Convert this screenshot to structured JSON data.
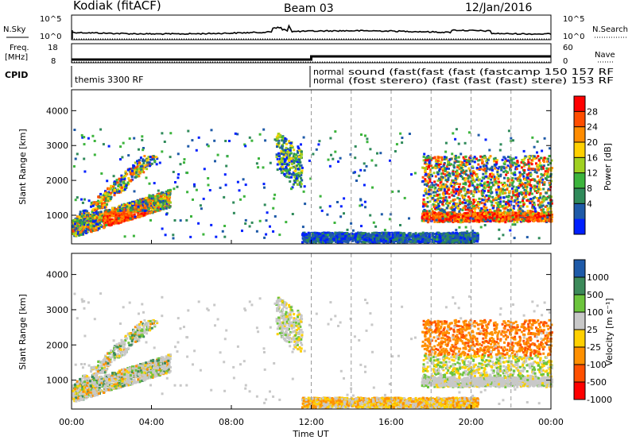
{
  "header": {
    "station": "Kodiak (fitACF)",
    "beam": "Beam 03",
    "date": "12/Jan/2016"
  },
  "panels": {
    "nsky": {
      "label": "N.Sky",
      "right_label": "N.Search",
      "ticks_left": [
        "10^5",
        "10^0"
      ],
      "ticks_right": [
        "10^5",
        "10^0"
      ]
    },
    "freq": {
      "label_line1": "Freq.",
      "label_line2": "[MHz]",
      "right_label": "Nave",
      "ticks_left": [
        "18",
        "8"
      ],
      "ticks_right": [
        "60",
        "0"
      ]
    },
    "cpid": {
      "label": "CPID",
      "mode_initial": "themis 3300 RF",
      "mode_row1": "normal",
      "mode_row2": "normal",
      "garbled_row1": "sound (fast(fast (fast (fastcamp 150 157 RF",
      "garbled_row2": "(fost sterero) (fast (fast (fast) stere) 153 RF"
    }
  },
  "chart_data": [
    {
      "type": "heatmap",
      "title": "Power",
      "ylabel": "Slant Range [km]",
      "ylim": [
        180,
        4600
      ],
      "yticks": [
        1000,
        2000,
        3000,
        4000
      ],
      "colorbar": {
        "label": "Power [dB]",
        "ticks": [
          "28",
          "24",
          "20",
          "16",
          "12",
          "8",
          "4"
        ],
        "colors": [
          "#ff0000",
          "#ff4d00",
          "#ff8c00",
          "#ffd000",
          "#a0d020",
          "#3cb43c",
          "#2f8a5a",
          "#1e5aa8",
          "#0020ff"
        ]
      },
      "regions": [
        {
          "x": [
            0,
            4.9
          ],
          "y": [
            500,
            1800
          ],
          "level": "high",
          "note": "arc"
        },
        {
          "x": [
            10.2,
            11.5
          ],
          "y": [
            2200,
            3400
          ],
          "level": "mid"
        },
        {
          "x": [
            12,
            20
          ],
          "y": [
            200,
            450
          ],
          "level": "low"
        },
        {
          "x": [
            17.5,
            24
          ],
          "y": [
            800,
            2700
          ],
          "level": "high"
        }
      ]
    },
    {
      "type": "heatmap",
      "title": "Velocity",
      "ylabel": "Slant Range [km]",
      "xlabel": "Time UT",
      "ylim": [
        180,
        4600
      ],
      "yticks": [
        1000,
        2000,
        3000,
        4000
      ],
      "xticks": [
        "00:00",
        "04:00",
        "08:00",
        "12:00",
        "16:00",
        "20:00",
        "00:00"
      ],
      "colorbar": {
        "label": "Velocity [m s⁻¹]",
        "ticks": [
          "1000",
          "500",
          "100",
          "25",
          "-25",
          "-100",
          "-500",
          "-1000"
        ],
        "colors": [
          "#1e5aa8",
          "#3c8a5a",
          "#6cc43c",
          "#c8c8c8",
          "#ffd000",
          "#ff9000",
          "#ff5000",
          "#ff0000"
        ]
      }
    }
  ],
  "gray_color": "#c8c8c8"
}
